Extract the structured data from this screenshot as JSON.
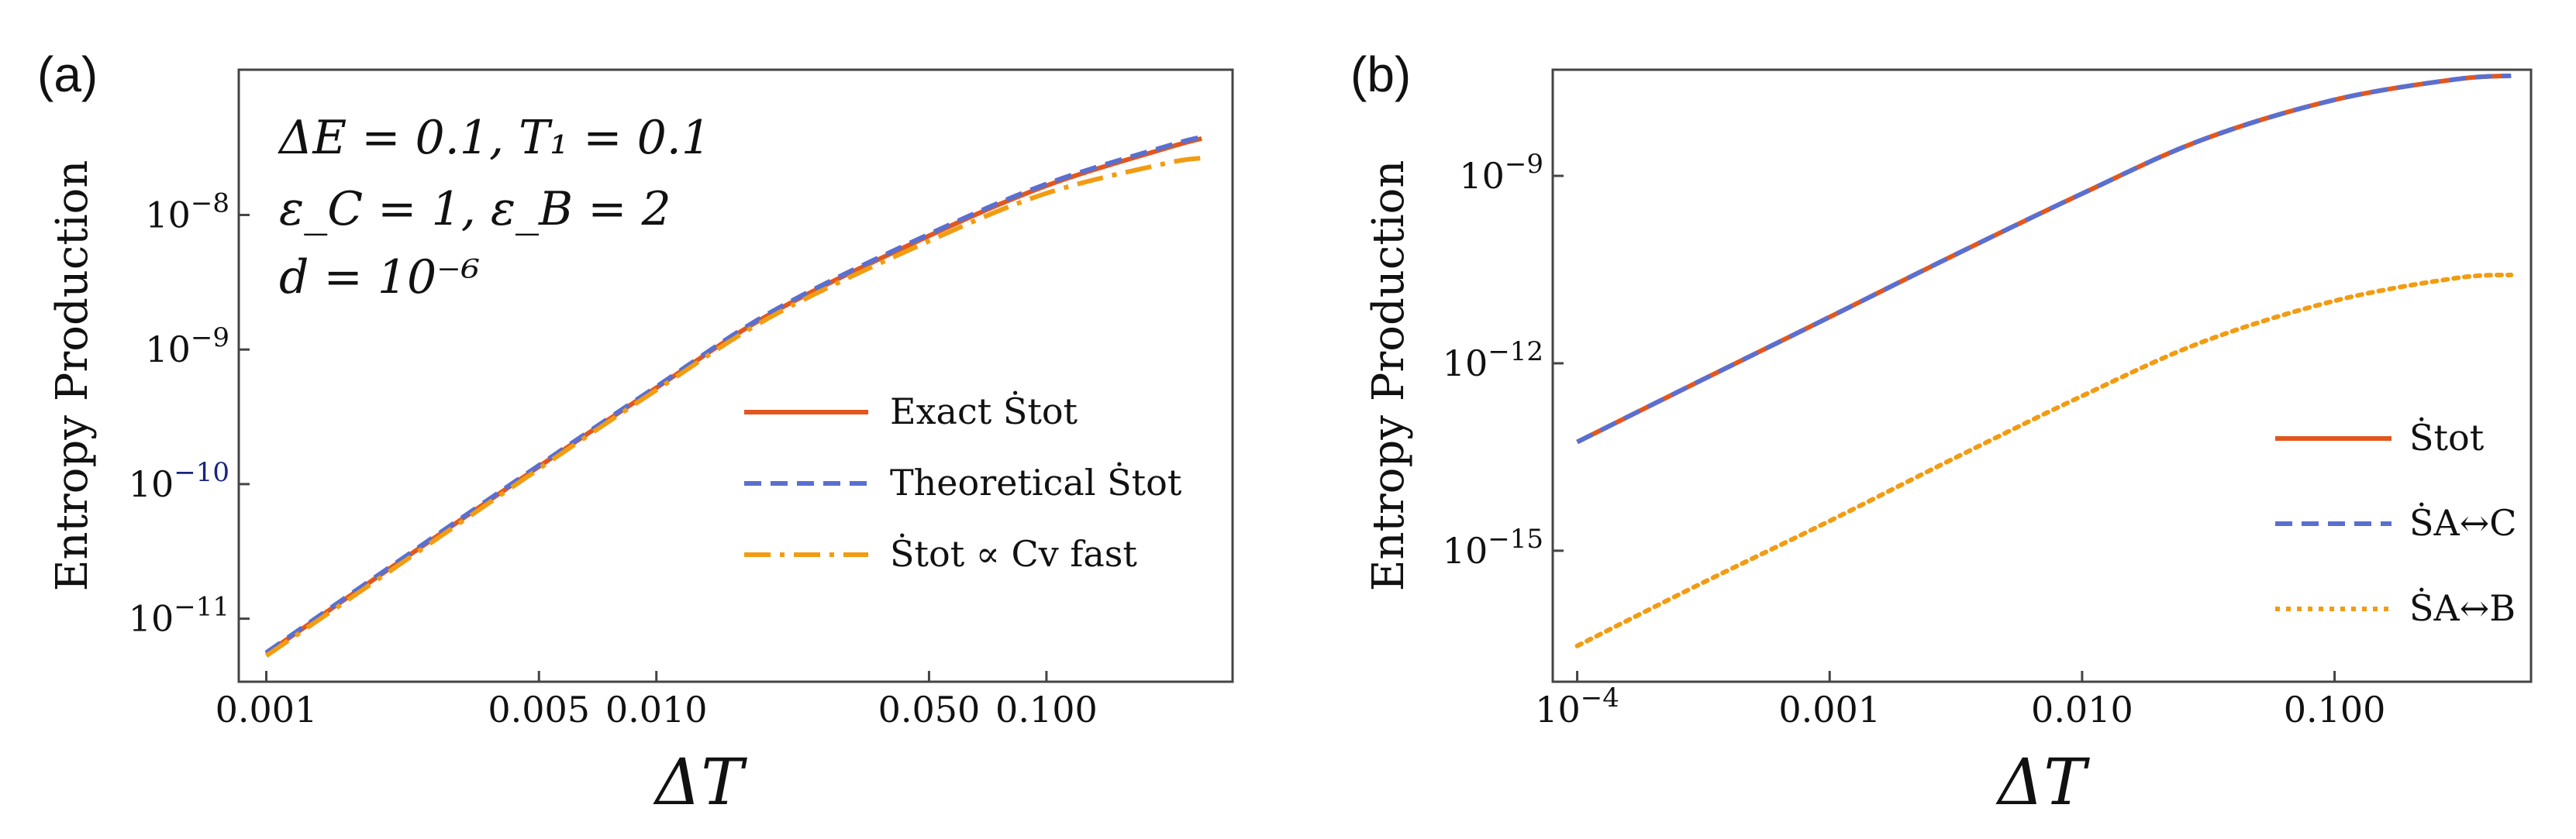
{
  "colors": {
    "exact": "#e2571e",
    "theoretical": "#5a6fd0",
    "third": "#f29c12",
    "tick_blue": "#1a237e"
  },
  "chart_data": [
    {
      "panel_label": "(a)",
      "type": "line",
      "xscale": "log",
      "yscale": "log",
      "xlim": [
        0.00085,
        0.3
      ],
      "ylim": [
        3.4e-12,
        1.2e-07
      ],
      "xlabel": "ΔT",
      "ylabel": "Entropy Production",
      "xticks": [
        {
          "value": 0.001,
          "label": "0.001"
        },
        {
          "value": 0.005,
          "label": "0.005"
        },
        {
          "value": 0.01,
          "label": "0.010"
        },
        {
          "value": 0.05,
          "label": "0.050"
        },
        {
          "value": 0.1,
          "label": "0.100"
        }
      ],
      "yticks": [
        {
          "value": 1e-11,
          "base": "10",
          "exp": "−11"
        },
        {
          "value": 1e-10,
          "base": "10",
          "exp": "−10"
        },
        {
          "value": 1e-09,
          "base": "10",
          "exp": "−9"
        },
        {
          "value": 1e-08,
          "base": "10",
          "exp": "−8"
        }
      ],
      "annotation_lines": [
        "ΔE = 0.1,  T₁ = 0.1",
        "ε_C = 1,  ε_B = 2",
        "d = 10⁻⁶"
      ],
      "legend_position": "center-right",
      "series": [
        {
          "name": "Exact Ṡ_tot",
          "legend_label": "Exact Ṡtot",
          "style": "solid",
          "color_key": "exact",
          "x": [
            0.001,
            0.002,
            0.005,
            0.01,
            0.02,
            0.05,
            0.1,
            0.2,
            0.25
          ],
          "y": [
            5.5e-12,
            2.2e-11,
            1.35e-10,
            5.2e-10,
            1.9e-09,
            7e-09,
            1.65e-08,
            3.1e-08,
            3.7e-08
          ]
        },
        {
          "name": "Theoretical Ṡ_tot",
          "legend_label": "Theoretical Ṡtot",
          "style": "dashed",
          "color_key": "theoretical",
          "x": [
            0.001,
            0.002,
            0.005,
            0.01,
            0.02,
            0.05,
            0.1,
            0.2,
            0.25
          ],
          "y": [
            5.6e-12,
            2.25e-11,
            1.38e-10,
            5.3e-10,
            1.95e-09,
            7.2e-09,
            1.7e-08,
            3.2e-08,
            3.8e-08
          ]
        },
        {
          "name": "Ṡ_tot ∝ C_v^fast",
          "legend_label": "Ṡtot ∝ Cv fast",
          "style": "dashdot",
          "color_key": "third",
          "x": [
            0.001,
            0.002,
            0.005,
            0.01,
            0.02,
            0.05,
            0.1,
            0.2,
            0.25
          ],
          "y": [
            5.3e-12,
            2.1e-11,
            1.3e-10,
            5e-10,
            1.8e-09,
            6.4e-09,
            1.45e-08,
            2.4e-08,
            2.65e-08
          ]
        }
      ]
    },
    {
      "panel_label": "(b)",
      "type": "line",
      "xscale": "log",
      "yscale": "log",
      "xlim": [
        8e-05,
        0.6
      ],
      "ylim": [
        8e-18,
        5e-08
      ],
      "xlabel": "ΔT",
      "ylabel": "Entropy Production",
      "xticks": [
        {
          "value": 0.0001,
          "base": "10",
          "exp": "−4"
        },
        {
          "value": 0.001,
          "label": "0.001"
        },
        {
          "value": 0.01,
          "label": "0.010"
        },
        {
          "value": 0.1,
          "label": "0.100"
        }
      ],
      "yticks": [
        {
          "value": 1e-15,
          "base": "10",
          "exp": "−15"
        },
        {
          "value": 1e-12,
          "base": "10",
          "exp": "−12"
        },
        {
          "value": 1e-09,
          "base": "10",
          "exp": "−9"
        }
      ],
      "legend_position": "bottom-right",
      "series": [
        {
          "name": "Ṡ_tot",
          "legend_label": "Ṡtot",
          "style": "solid",
          "color_key": "exact",
          "x": [
            0.0001,
            0.0003,
            0.001,
            0.003,
            0.01,
            0.03,
            0.1,
            0.3,
            0.5
          ],
          "y": [
            5.5e-14,
            5e-13,
            5.5e-12,
            5e-11,
            5.2e-10,
            3.8e-09,
            1.65e-08,
            3.5e-08,
            4e-08
          ]
        },
        {
          "name": "Ṡ_{A↔C}",
          "legend_label": "ṠA↔C",
          "style": "dashed",
          "color_key": "theoretical",
          "x": [
            0.0001,
            0.0003,
            0.001,
            0.003,
            0.01,
            0.03,
            0.1,
            0.3,
            0.5
          ],
          "y": [
            5.5e-14,
            5e-13,
            5.5e-12,
            5e-11,
            5.2e-10,
            3.8e-09,
            1.65e-08,
            3.5e-08,
            4e-08
          ]
        },
        {
          "name": "Ṡ_{A↔B}",
          "legend_label": "ṠA↔B",
          "style": "dotted",
          "color_key": "third",
          "x": [
            0.0001,
            0.0003,
            0.001,
            0.003,
            0.01,
            0.03,
            0.1,
            0.3,
            0.5
          ],
          "y": [
            3e-17,
            2.8e-16,
            3e-15,
            2.8e-14,
            3e-13,
            2.2e-12,
            1e-11,
            2.3e-11,
            2.6e-11
          ]
        }
      ]
    }
  ]
}
